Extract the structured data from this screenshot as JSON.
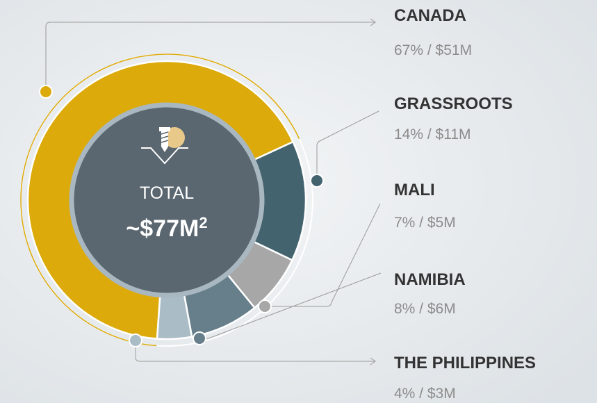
{
  "chart_data": {
    "type": "donut",
    "categories": [
      "CANADA",
      "GRASSROOTS",
      "MALI",
      "NAMIBIA",
      "THE PHILIPPINES"
    ],
    "values": [
      67,
      14,
      7,
      8,
      4
    ],
    "value_labels": [
      "67% / $51M",
      "14% / $11M",
      "7% / $5M",
      "8% / $6M",
      "4% / $3M"
    ],
    "colors": [
      "#dcaa0b",
      "#43636f",
      "#a7a7a7",
      "#677f8b",
      "#aabcc6"
    ],
    "center_title": "TOTAL",
    "center_value": "~$77M",
    "center_note": "2"
  }
}
